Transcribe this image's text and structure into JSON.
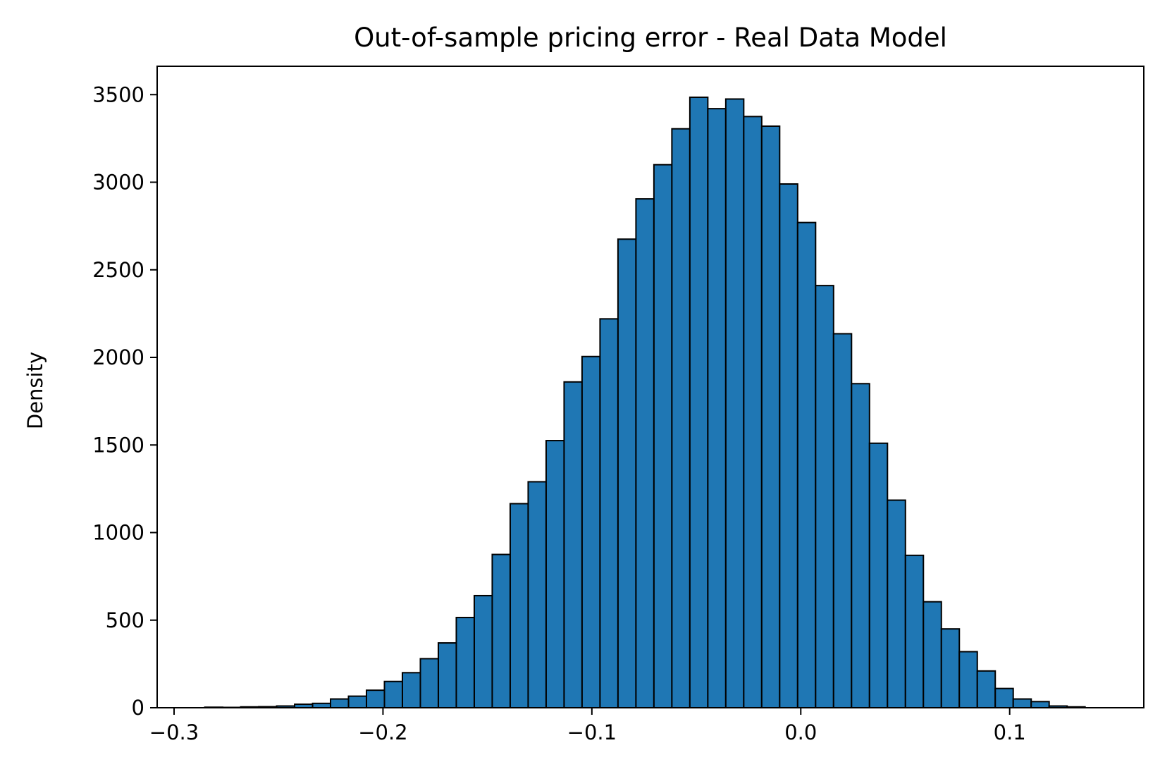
{
  "chart_data": {
    "type": "bar",
    "title": "Out-of-sample pricing error - Real Data Model",
    "xlabel": "",
    "ylabel": "Density",
    "xlim": [
      -0.3081,
      0.1642
    ],
    "ylim": [
      0,
      3662
    ],
    "grid": false,
    "legend": "none",
    "bar_color": "#1f77b4",
    "edge_color": "#000000",
    "bin_width": 0.0086,
    "bins_left": [
      -0.2853,
      -0.2767,
      -0.2681,
      -0.2595,
      -0.2509,
      -0.2423,
      -0.2337,
      -0.2251,
      -0.2165,
      -0.2079,
      -0.1993,
      -0.1907,
      -0.1821,
      -0.1735,
      -0.1649,
      -0.1563,
      -0.1477,
      -0.1391,
      -0.1305,
      -0.1219,
      -0.1133,
      -0.1047,
      -0.0961,
      -0.0875,
      -0.0789,
      -0.0703,
      -0.0617,
      -0.0531,
      -0.0445,
      -0.0359,
      -0.0273,
      -0.0187,
      -0.0101,
      -0.0015,
      0.0071,
      0.0157,
      0.0243,
      0.0329,
      0.0415,
      0.0501,
      0.0587,
      0.0673,
      0.0759,
      0.0845,
      0.0931,
      0.1017,
      0.1103,
      0.1189,
      0.1275
    ],
    "values": [
      3,
      2,
      5,
      6,
      10,
      20,
      25,
      50,
      66,
      100,
      150,
      200,
      280,
      370,
      515,
      640,
      875,
      1165,
      1290,
      1525,
      1860,
      2005,
      2220,
      2675,
      2905,
      3100,
      3305,
      3485,
      3420,
      3475,
      3375,
      3320,
      2990,
      2770,
      2410,
      2135,
      1850,
      1510,
      1185,
      870,
      605,
      450,
      320,
      210,
      110,
      50,
      35,
      10,
      5
    ],
    "x_ticks": [
      -0.3,
      -0.2,
      -0.1,
      0.0,
      0.1
    ],
    "x_tick_labels": [
      "−0.3",
      "−0.2",
      "−0.1",
      "0.0",
      "0.1"
    ],
    "y_ticks": [
      0,
      500,
      1000,
      1500,
      2000,
      2500,
      3000,
      3500
    ],
    "y_tick_labels": [
      "0",
      "500",
      "1000",
      "1500",
      "2000",
      "2500",
      "3000",
      "3500"
    ]
  }
}
